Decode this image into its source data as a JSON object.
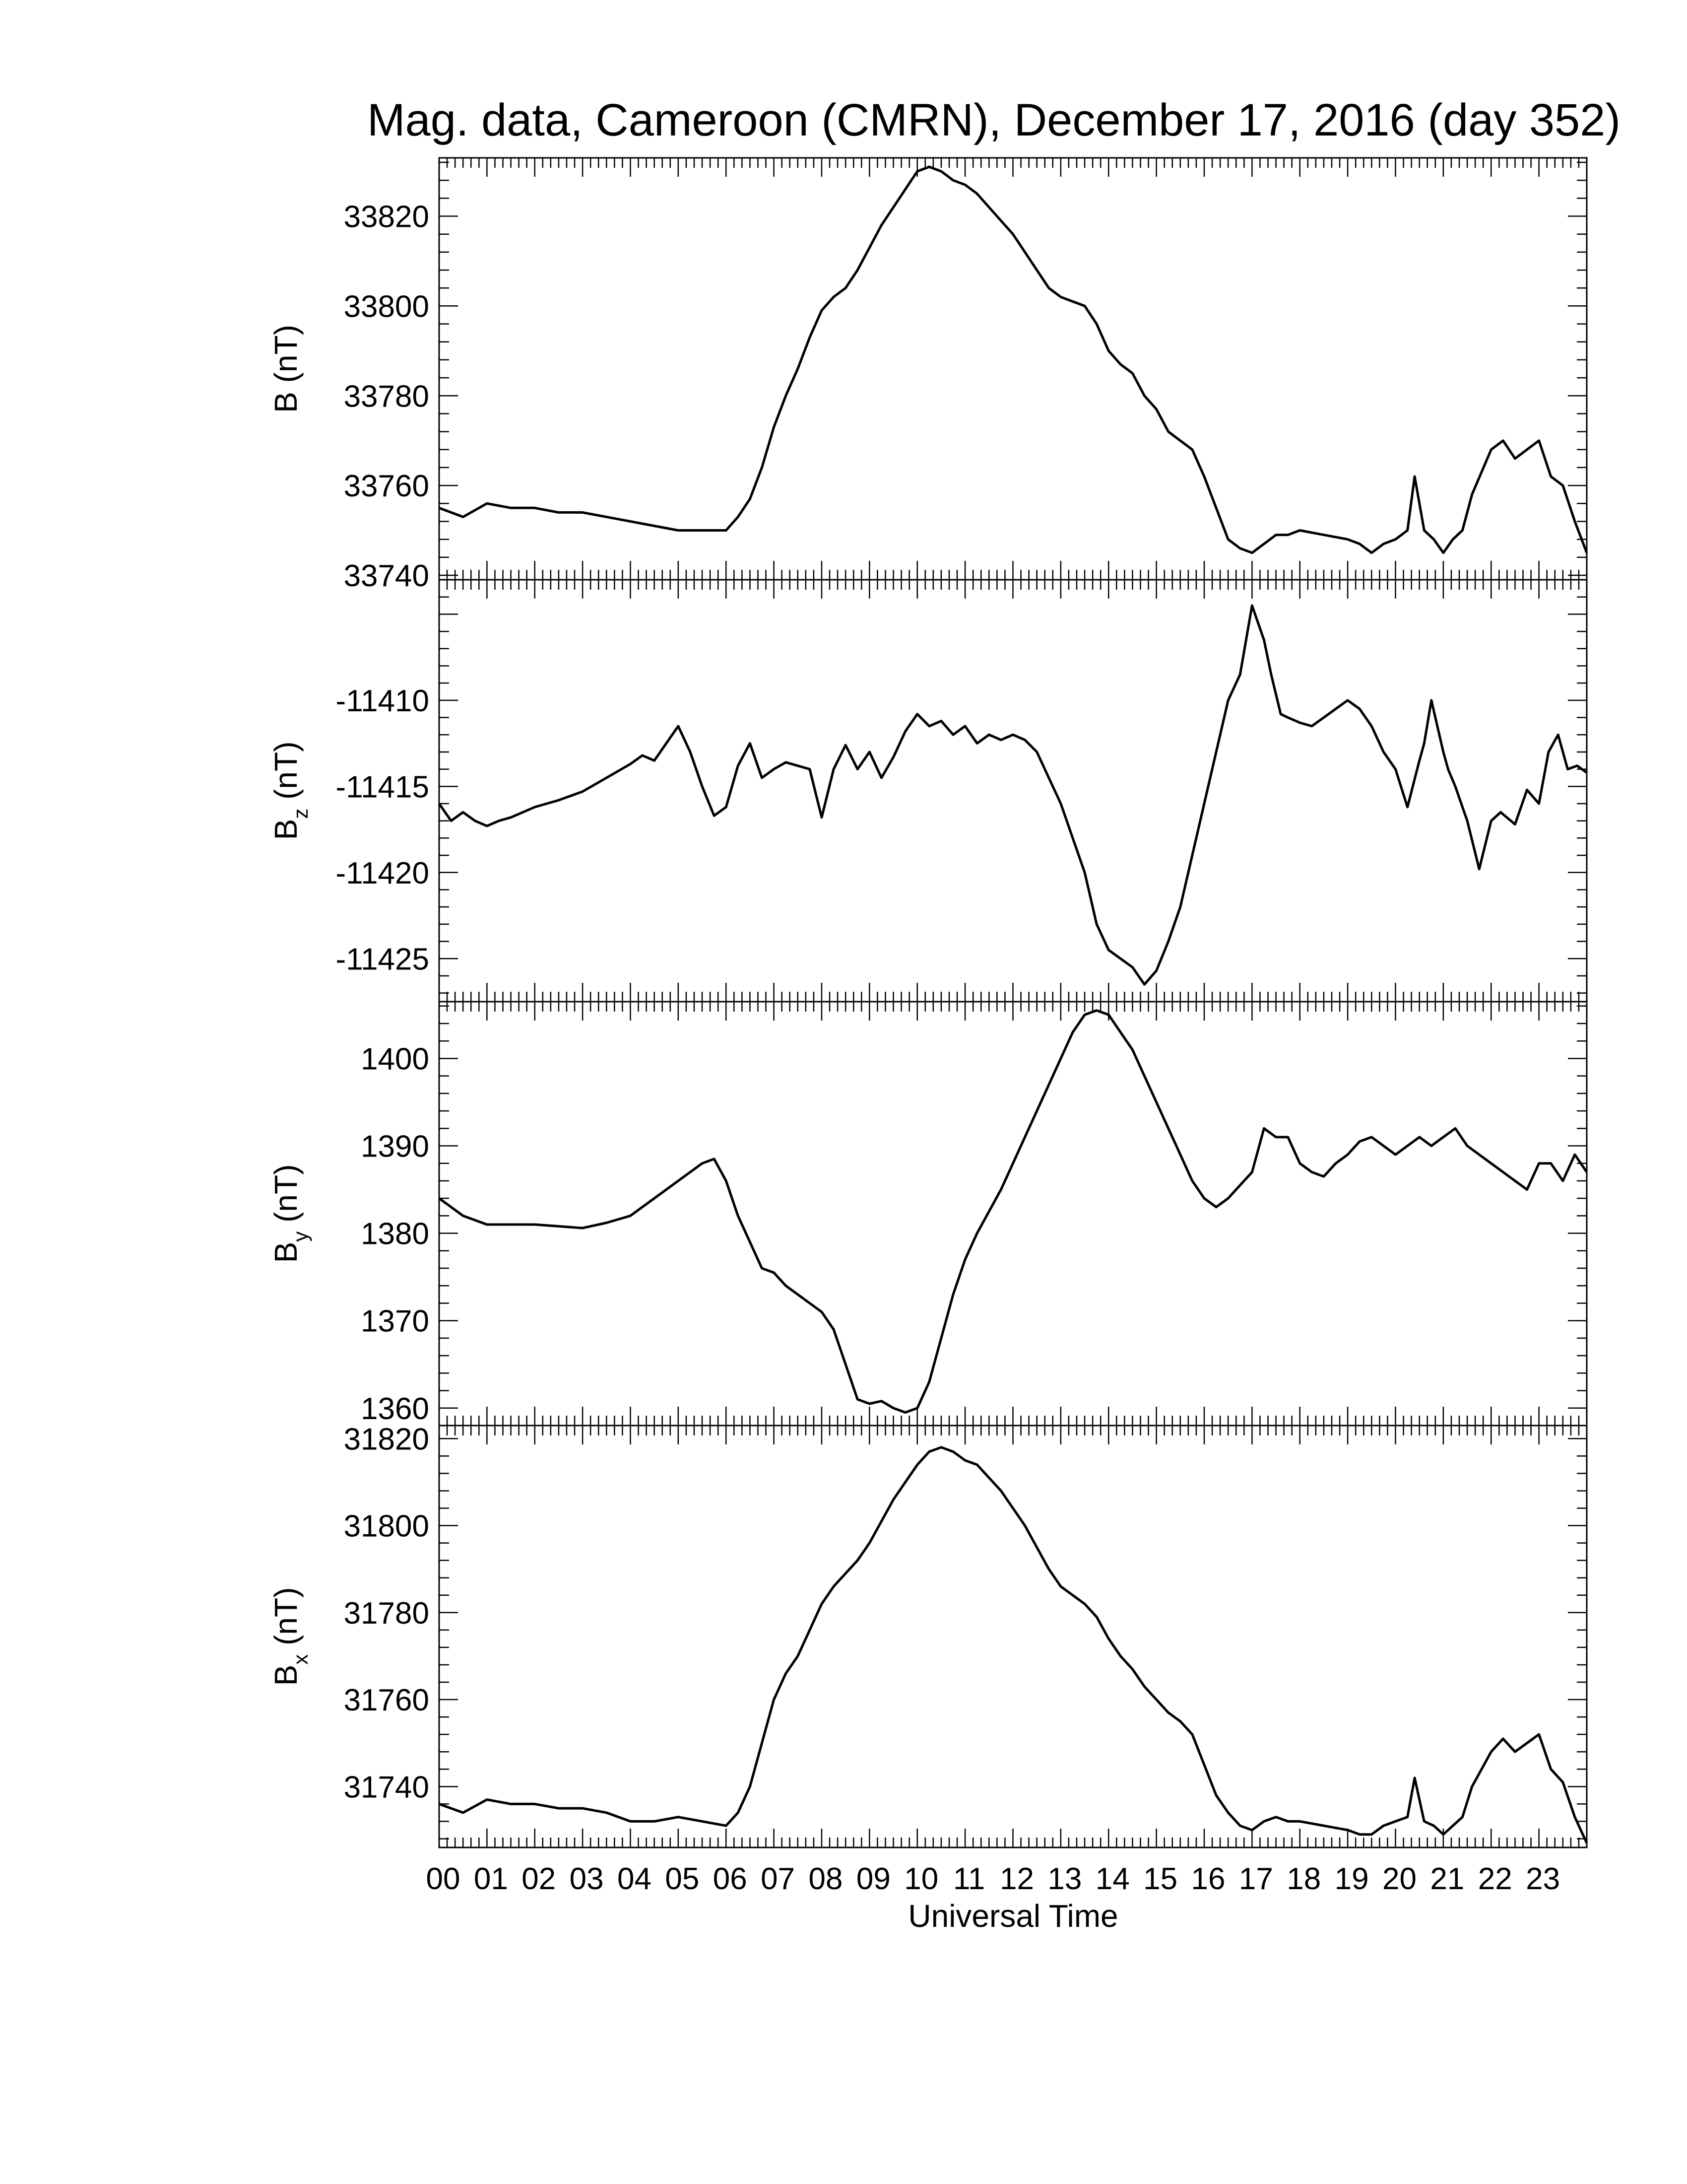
{
  "title": "Mag. data, Cameroon (CMRN), December 17, 2016 (day 352)",
  "xlabel": "Universal Time",
  "colors": {
    "line": "#000000",
    "axes": "#000000",
    "background": "#ffffff"
  },
  "chart_data": [
    {
      "type": "line",
      "ylabel": "B (nT)",
      "ylabel_main": "B",
      "ylabel_sub": "",
      "ylabel_unit": " (nT)",
      "ylim": [
        33739,
        33833
      ],
      "yticks": [
        33740,
        33760,
        33780,
        33800,
        33820
      ],
      "xlim": [
        0,
        24
      ],
      "series": [
        {
          "x": [
            0,
            0.5,
            1,
            1.5,
            2,
            2.5,
            3,
            3.5,
            4,
            4.5,
            5,
            5.5,
            6,
            6.25,
            6.5,
            6.75,
            7,
            7.25,
            7.5,
            7.75,
            8,
            8.25,
            8.5,
            8.75,
            9,
            9.25,
            9.5,
            9.75,
            10,
            10.25,
            10.5,
            10.75,
            11,
            11.25,
            11.5,
            11.75,
            12,
            12.25,
            12.5,
            12.75,
            13,
            13.25,
            13.5,
            13.75,
            14,
            14.25,
            14.5,
            14.75,
            15,
            15.25,
            15.5,
            15.75,
            16,
            16.25,
            16.5,
            16.75,
            17,
            17.25,
            17.5,
            17.75,
            18,
            18.5,
            19,
            19.25,
            19.5,
            19.75,
            20,
            20.25,
            20.4,
            20.6,
            20.8,
            21,
            21.2,
            21.4,
            21.6,
            21.8,
            22,
            22.25,
            22.5,
            22.75,
            23,
            23.25,
            23.5,
            23.75,
            24
          ],
          "y": [
            33755,
            33753,
            33756,
            33755,
            33755,
            33754,
            33754,
            33753,
            33752,
            33751,
            33750,
            33750,
            33750,
            33753,
            33757,
            33764,
            33773,
            33780,
            33786,
            33793,
            33799,
            33802,
            33804,
            33808,
            33813,
            33818,
            33822,
            33826,
            33830,
            33831,
            33830,
            33828,
            33827,
            33825,
            33822,
            33819,
            33816,
            33812,
            33808,
            33804,
            33802,
            33801,
            33800,
            33796,
            33790,
            33787,
            33785,
            33780,
            33777,
            33772,
            33770,
            33768,
            33762,
            33755,
            33748,
            33746,
            33745,
            33747,
            33749,
            33749,
            33750,
            33749,
            33748,
            33747,
            33745,
            33747,
            33748,
            33750,
            33762,
            33750,
            33748,
            33745,
            33748,
            33750,
            33758,
            33763,
            33768,
            33770,
            33766,
            33768,
            33770,
            33762,
            33760,
            33752,
            33745
          ]
        }
      ]
    },
    {
      "type": "line",
      "ylabel": "Bz (nT)",
      "ylabel_main": "B",
      "ylabel_sub": "z",
      "ylabel_unit": " (nT)",
      "ylim": [
        -11427.5,
        -11403
      ],
      "yticks": [
        -11425,
        -11420,
        -11415,
        -11410
      ],
      "xlim": [
        0,
        24
      ],
      "series": [
        {
          "x": [
            0,
            0.25,
            0.5,
            0.75,
            1,
            1.25,
            1.5,
            2,
            2.5,
            3,
            3.5,
            4,
            4.25,
            4.5,
            4.75,
            5,
            5.25,
            5.5,
            5.75,
            6,
            6.25,
            6.5,
            6.75,
            7,
            7.25,
            7.5,
            7.75,
            8,
            8.25,
            8.5,
            8.75,
            9,
            9.25,
            9.5,
            9.75,
            10,
            10.25,
            10.5,
            10.75,
            11,
            11.25,
            11.5,
            11.75,
            12,
            12.25,
            12.5,
            12.75,
            13,
            13.25,
            13.5,
            13.75,
            14,
            14.25,
            14.5,
            14.75,
            15,
            15.25,
            15.5,
            15.75,
            16,
            16.25,
            16.5,
            16.75,
            17,
            17.25,
            17.4,
            17.6,
            17.75,
            18,
            18.25,
            18.5,
            18.75,
            19,
            19.25,
            19.5,
            19.75,
            20,
            20.25,
            20.5,
            20.6,
            20.75,
            21,
            21.1,
            21.25,
            21.5,
            21.75,
            22,
            22.2,
            22.5,
            22.75,
            23,
            23.2,
            23.4,
            23.6,
            23.8,
            24
          ],
          "y": [
            -11416,
            -11417,
            -11416.5,
            -11417,
            -11417.3,
            -11417,
            -11416.8,
            -11416.2,
            -11415.8,
            -11415.3,
            -11414.5,
            -11413.7,
            -11413.2,
            -11413.5,
            -11412.5,
            -11411.5,
            -11413,
            -11415,
            -11416.7,
            -11416.2,
            -11413.8,
            -11412.5,
            -11414.5,
            -11414,
            -11413.6,
            -11413.8,
            -11414,
            -11416.8,
            -11414,
            -11412.6,
            -11414,
            -11413,
            -11414.5,
            -11413.3,
            -11411.8,
            -11410.8,
            -11411.5,
            -11411.2,
            -11412,
            -11411.5,
            -11412.5,
            -11412,
            -11412.3,
            -11412,
            -11412.3,
            -11413,
            -11414.5,
            -11416,
            -11418,
            -11420,
            -11423,
            -11424.5,
            -11425,
            -11425.5,
            -11426.5,
            -11425.7,
            -11424,
            -11422,
            -11419,
            -11416,
            -11413,
            -11410,
            -11408.5,
            -11404.5,
            -11406.5,
            -11408.5,
            -11410.8,
            -11411,
            -11411.3,
            -11411.5,
            -11411,
            -11410.5,
            -11410,
            -11410.5,
            -11411.5,
            -11413,
            -11414,
            -11416.2,
            -11413.5,
            -11412.5,
            -11410,
            -11413,
            -11414,
            -11415,
            -11417,
            -11419.8,
            -11417,
            -11416.5,
            -11417.2,
            -11415.2,
            -11416,
            -11413,
            -11412,
            -11414,
            -11413.8,
            -11414.2
          ]
        }
      ]
    },
    {
      "type": "line",
      "ylabel": "By (nT)",
      "ylabel_main": "B",
      "ylabel_sub": "y",
      "ylabel_unit": " (nT)",
      "ylim": [
        1358,
        1406.5
      ],
      "yticks": [
        1360,
        1370,
        1380,
        1390,
        1400
      ],
      "xlim": [
        0,
        24
      ],
      "series": [
        {
          "x": [
            0,
            0.5,
            1,
            1.5,
            2,
            2.5,
            3,
            3.5,
            4,
            4.5,
            5,
            5.25,
            5.5,
            5.75,
            6,
            6.25,
            6.5,
            6.75,
            7,
            7.25,
            7.5,
            7.75,
            8,
            8.25,
            8.5,
            8.75,
            9,
            9.25,
            9.5,
            9.75,
            10,
            10.25,
            10.5,
            10.75,
            11,
            11.25,
            11.5,
            11.75,
            12,
            12.25,
            12.5,
            12.75,
            13,
            13.25,
            13.5,
            13.75,
            14,
            14.25,
            14.5,
            14.75,
            15,
            15.25,
            15.5,
            15.75,
            16,
            16.25,
            16.5,
            16.75,
            17,
            17.25,
            17.5,
            17.75,
            18,
            18.25,
            18.5,
            18.75,
            19,
            19.25,
            19.5,
            19.75,
            20,
            20.25,
            20.5,
            20.75,
            21,
            21.25,
            21.5,
            21.75,
            22,
            22.25,
            22.5,
            22.75,
            23,
            23.25,
            23.5,
            23.75,
            24
          ],
          "y": [
            1384,
            1382,
            1381,
            1381,
            1381,
            1380.8,
            1380.6,
            1381.2,
            1382,
            1384,
            1386,
            1387,
            1388,
            1388.5,
            1386,
            1382,
            1379,
            1376,
            1375.5,
            1374,
            1373,
            1372,
            1371,
            1369,
            1365,
            1361,
            1360.5,
            1360.8,
            1360,
            1359.5,
            1360,
            1363,
            1368,
            1373,
            1377,
            1380,
            1382.5,
            1385,
            1388,
            1391,
            1394,
            1397,
            1400,
            1403,
            1405,
            1405.5,
            1405,
            1403,
            1401,
            1398,
            1395,
            1392,
            1389,
            1386,
            1384,
            1383,
            1384,
            1385.5,
            1387,
            1392,
            1391,
            1391,
            1388,
            1387,
            1386.5,
            1388,
            1389,
            1390.5,
            1391,
            1390,
            1389,
            1390,
            1391,
            1390,
            1391,
            1392,
            1390,
            1389,
            1388,
            1387,
            1386,
            1385,
            1388,
            1388,
            1386,
            1389,
            1387
          ]
        }
      ]
    },
    {
      "type": "line",
      "ylabel": "Bx (nT)",
      "ylabel_main": "B",
      "ylabel_sub": "x",
      "ylabel_unit": " (nT)",
      "ylim": [
        31726,
        31823
      ],
      "yticks": [
        31740,
        31760,
        31780,
        31800,
        31820
      ],
      "xlim": [
        0,
        24
      ],
      "series": [
        {
          "x": [
            0,
            0.5,
            1,
            1.5,
            2,
            2.5,
            3,
            3.5,
            4,
            4.5,
            5,
            5.5,
            6,
            6.25,
            6.5,
            6.75,
            7,
            7.25,
            7.5,
            7.75,
            8,
            8.25,
            8.5,
            8.75,
            9,
            9.25,
            9.5,
            9.75,
            10,
            10.25,
            10.5,
            10.75,
            11,
            11.25,
            11.5,
            11.75,
            12,
            12.25,
            12.5,
            12.75,
            13,
            13.25,
            13.5,
            13.75,
            14,
            14.25,
            14.5,
            14.75,
            15,
            15.25,
            15.5,
            15.75,
            16,
            16.25,
            16.5,
            16.75,
            17,
            17.25,
            17.5,
            17.75,
            18,
            18.5,
            19,
            19.25,
            19.5,
            19.75,
            20,
            20.25,
            20.4,
            20.6,
            20.8,
            21,
            21.2,
            21.4,
            21.6,
            21.8,
            22,
            22.25,
            22.5,
            22.75,
            23,
            23.25,
            23.5,
            23.75,
            24
          ],
          "y": [
            31736,
            31734,
            31737,
            31736,
            31736,
            31735,
            31735,
            31734,
            31732,
            31732,
            31733,
            31732,
            31731,
            31734,
            31740,
            31750,
            31760,
            31766,
            31770,
            31776,
            31782,
            31786,
            31789,
            31792,
            31796,
            31801,
            31806,
            31810,
            31814,
            31817,
            31818,
            31817,
            31815,
            31814,
            31811,
            31808,
            31804,
            31800,
            31795,
            31790,
            31786,
            31784,
            31782,
            31779,
            31774,
            31770,
            31767,
            31763,
            31760,
            31757,
            31755,
            31752,
            31745,
            31738,
            31734,
            31731,
            31730,
            31732,
            31733,
            31732,
            31732,
            31731,
            31730,
            31729,
            31729,
            31731,
            31732,
            31733,
            31742,
            31732,
            31731,
            31729,
            31731,
            31733,
            31740,
            31744,
            31748,
            31751,
            31748,
            31750,
            31752,
            31744,
            31741,
            31733,
            31727
          ]
        }
      ]
    }
  ],
  "xticks": [
    "00",
    "01",
    "02",
    "03",
    "04",
    "05",
    "06",
    "07",
    "08",
    "09",
    "10",
    "11",
    "12",
    "13",
    "14",
    "15",
    "16",
    "17",
    "18",
    "19",
    "20",
    "21",
    "22",
    "23"
  ]
}
